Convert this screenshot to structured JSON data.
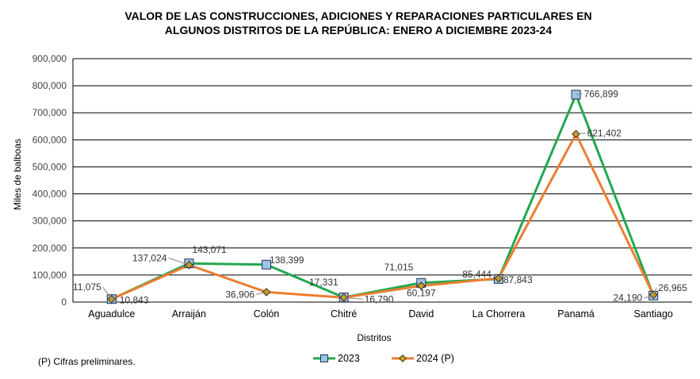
{
  "chart_data": {
    "type": "line",
    "title_lines": [
      "VALOR DE LAS CONSTRUCCIONES, ADICIONES Y REPARACIONES PARTICULARES EN",
      "ALGUNOS DISTRITOS DE LA REPÚBLICA: ENERO A DICIEMBRE 2023-24"
    ],
    "xlabel": "Distritos",
    "ylabel": "Miles de balboas",
    "ylim": [
      0,
      900000
    ],
    "yticks": [
      0,
      100000,
      200000,
      300000,
      400000,
      500000,
      600000,
      700000,
      800000,
      900000
    ],
    "ytick_labels": [
      "0",
      "100,000",
      "200,000",
      "300,000",
      "400,000",
      "500,000",
      "600,000",
      "700,000",
      "800,000",
      "900,000"
    ],
    "grid": true,
    "legend_position": "bottom-center",
    "categories": [
      "Aguadulce",
      "Arraiján",
      "Colón",
      "Chitré",
      "David",
      "La Chorrera",
      "Panamá",
      "Santiago"
    ],
    "series": [
      {
        "name": "2023",
        "line_color": "#21A850",
        "marker": "square",
        "marker_color": "#9DC3E6",
        "values": [
          11075,
          143071,
          138399,
          17331,
          71015,
          85444,
          766899,
          24190
        ],
        "labels": [
          "11,075",
          "143,071",
          "138,399",
          "17,331",
          "71,015",
          "85,444",
          "766,899",
          "24,190"
        ]
      },
      {
        "name": "2024 (P)",
        "line_color": "#ED7D31",
        "marker": "diamond",
        "marker_color": "#C9A227",
        "values": [
          10843,
          137024,
          36906,
          16790,
          60197,
          87843,
          621402,
          26965
        ],
        "labels": [
          "10,843",
          "137,024",
          "36,906",
          "16,790",
          "60,197",
          "87,843",
          "621,402",
          "26,965"
        ]
      }
    ],
    "footnote": "(P) Cifras  preliminares."
  }
}
